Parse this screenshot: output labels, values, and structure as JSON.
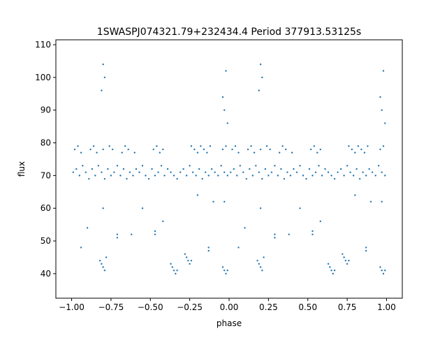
{
  "chart_data": {
    "type": "scatter",
    "title": "1SWASPJ074321.79+232434.4 Period 377913.53125s",
    "xlabel": "phase",
    "ylabel": "flux",
    "xlim": [
      -1.1,
      1.1
    ],
    "ylim": [
      32.5,
      111.5
    ],
    "xticks": [
      -1.0,
      -0.75,
      -0.5,
      -0.25,
      0.0,
      0.25,
      0.5,
      0.75,
      1.0
    ],
    "xtick_labels": [
      "−1.00",
      "−0.75",
      "−0.50",
      "−0.25",
      "0.00",
      "0.25",
      "0.50",
      "0.75",
      "1.00"
    ],
    "yticks": [
      40,
      50,
      60,
      70,
      80,
      90,
      100,
      110
    ],
    "ytick_labels": [
      "40",
      "50",
      "60",
      "70",
      "80",
      "90",
      "100",
      "110"
    ],
    "grid": false,
    "marker_color": "#1f77b4",
    "points_half": {
      "x": [
        -0.99,
        -0.97,
        -0.95,
        -0.93,
        -0.91,
        -0.89,
        -0.87,
        -0.85,
        -0.83,
        -0.81,
        -0.79,
        -0.77,
        -0.75,
        -0.73,
        -0.71,
        -0.69,
        -0.67,
        -0.65,
        -0.63,
        -0.61,
        -0.59,
        -0.57,
        -0.55,
        -0.53,
        -0.51,
        -0.49,
        -0.47,
        -0.45,
        -0.43,
        -0.41,
        -0.39,
        -0.37,
        -0.35,
        -0.33,
        -0.31,
        -0.29,
        -0.27,
        -0.25,
        -0.23,
        -0.21,
        -0.19,
        -0.17,
        -0.15,
        -0.13,
        -0.11,
        -0.09,
        -0.07,
        -0.05,
        -0.03,
        -0.01,
        -0.98,
        -0.96,
        -0.94,
        -0.88,
        -0.86,
        -0.84,
        -0.8,
        -0.76,
        -0.74,
        -0.68,
        -0.66,
        -0.64,
        -0.6,
        -0.48,
        -0.46,
        -0.44,
        -0.42,
        -0.24,
        -0.22,
        -0.2,
        -0.18,
        -0.16,
        -0.14,
        -0.12,
        -0.04,
        -0.02,
        -0.82,
        -0.81,
        -0.8,
        -0.79,
        -0.78,
        -0.37,
        -0.36,
        -0.35,
        -0.34,
        -0.33,
        -0.28,
        -0.27,
        -0.26,
        -0.25,
        -0.24,
        -0.04,
        -0.03,
        -0.02,
        -0.01,
        -0.13,
        -0.13,
        -0.71,
        -0.71,
        -0.47,
        -0.47,
        -0.9,
        -0.42,
        -0.62,
        -0.81,
        -0.8,
        -0.79,
        -0.03,
        -0.02,
        -0.04,
        -0.01,
        -0.8,
        -0.03,
        -0.55,
        -0.2,
        -0.1,
        -0.94
      ],
      "y": [
        71,
        72,
        70,
        73,
        71,
        69,
        72,
        70,
        73,
        71,
        69,
        72,
        70,
        71,
        73,
        70,
        72,
        69,
        71,
        70,
        72,
        71,
        73,
        70,
        69,
        72,
        70,
        71,
        73,
        70,
        72,
        71,
        70,
        69,
        71,
        72,
        70,
        73,
        71,
        70,
        72,
        69,
        71,
        70,
        72,
        71,
        70,
        73,
        71,
        70,
        78,
        79,
        77,
        78,
        79,
        77,
        78,
        79,
        78,
        77,
        79,
        78,
        77,
        78,
        79,
        77,
        78,
        79,
        78,
        77,
        79,
        78,
        77,
        79,
        78,
        79,
        44,
        43,
        42,
        41,
        45,
        43,
        42,
        41,
        40,
        41,
        46,
        45,
        44,
        43,
        44,
        42,
        41,
        40,
        41,
        48,
        47,
        52,
        51,
        53,
        52,
        54,
        56,
        52,
        96,
        104,
        100,
        90,
        102,
        94,
        86,
        60,
        62,
        60,
        64,
        62,
        48
      ]
    }
  }
}
